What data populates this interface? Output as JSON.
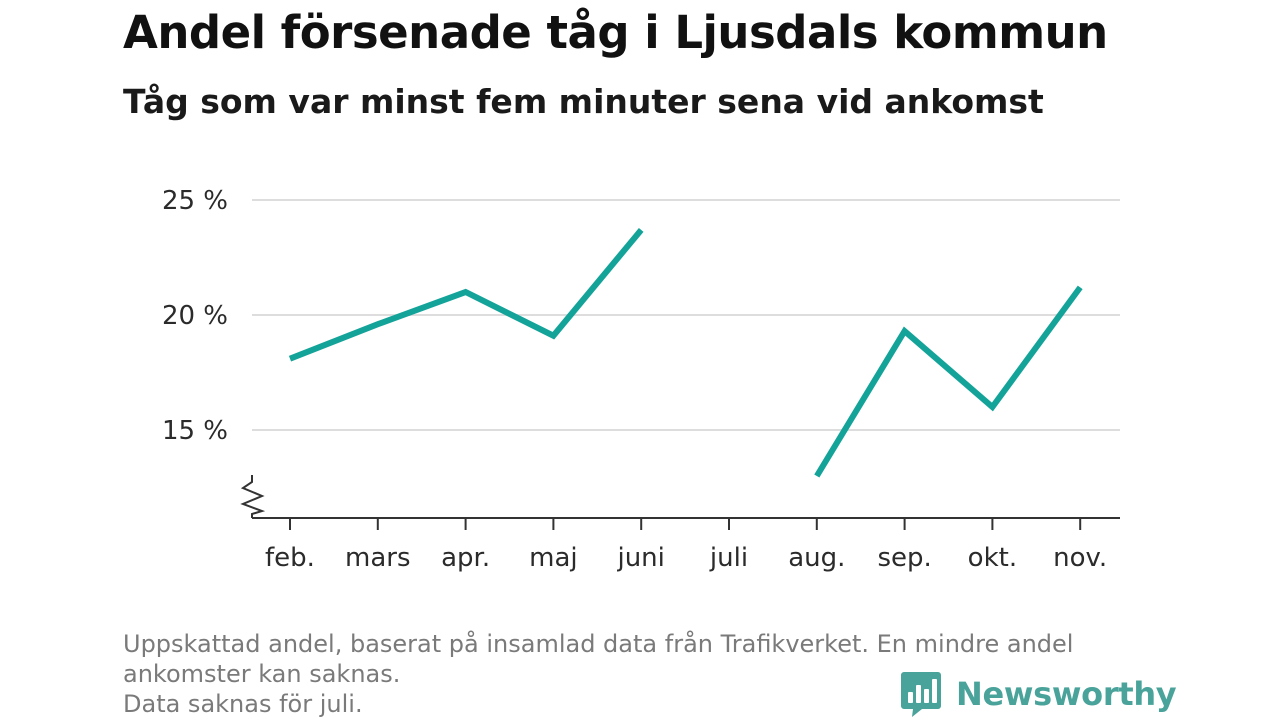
{
  "header": {
    "title": "Andel försenade tåg i Ljusdals kommun",
    "subtitle": "Tåg som var minst fem minuter sena vid ankomst"
  },
  "chart_data": {
    "type": "line",
    "categories": [
      "feb.",
      "mars",
      "apr.",
      "maj",
      "juni",
      "juli",
      "aug.",
      "sep.",
      "okt.",
      "nov."
    ],
    "series": [
      {
        "values": [
          18.1,
          19.6,
          21.0,
          19.1,
          23.7,
          null,
          13.0,
          19.3,
          16.0,
          21.2
        ]
      }
    ],
    "ylim": [
      11.3,
      25
    ],
    "yticks": [
      15,
      20,
      25
    ],
    "ytick_labels": [
      "15 %",
      "20 %",
      "25 %"
    ],
    "y_axis_break": true,
    "grid": true,
    "line_color": "#13a399",
    "grid_color": "#dddddd",
    "axis_color": "#333333"
  },
  "footer": {
    "note_lines": [
      "Uppskattad andel, baserat på insamlad data från Trafikverket. En mindre andel",
      "ankomster kan saknas.",
      "Data saknas för juli."
    ],
    "brand_name": "Newsworthy",
    "brand_icon": "newsworthy-logo-icon",
    "brand_color": "#4aa39a"
  }
}
